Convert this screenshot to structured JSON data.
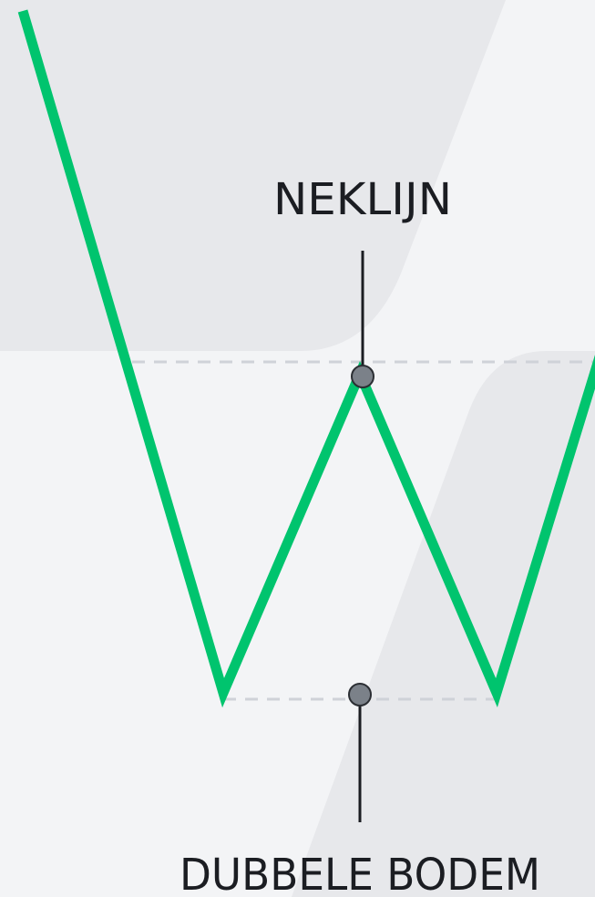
{
  "labels": {
    "neckline": "NEKLIJN",
    "double_bottom": "DUBBELE BODEM"
  }
}
